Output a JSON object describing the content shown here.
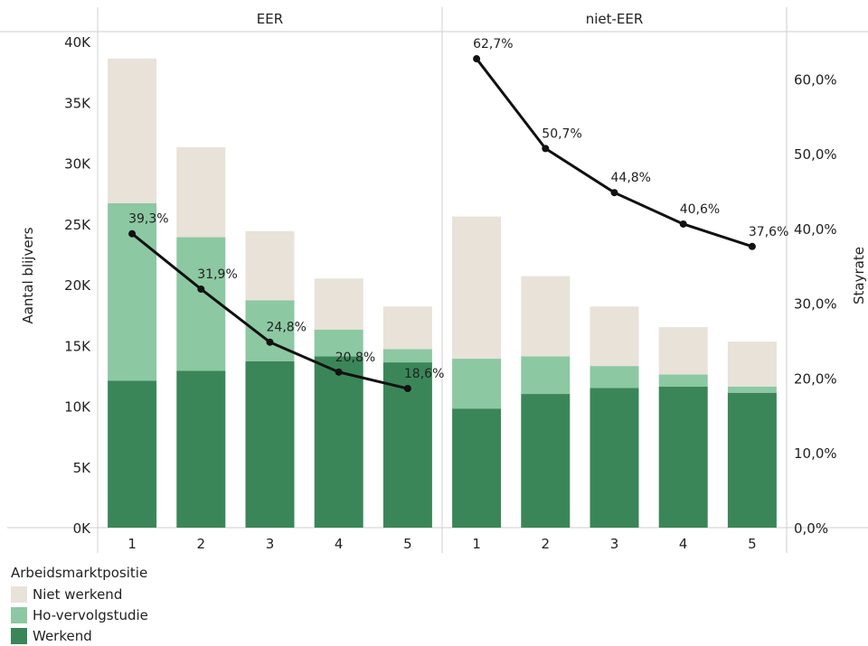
{
  "chart_data": {
    "type": "bar",
    "stacked": true,
    "panels": [
      "EER",
      "niet-EER"
    ],
    "categories": [
      "1",
      "2",
      "3",
      "4",
      "5"
    ],
    "ylabel": "Aantal blijvers",
    "y2label": "Stayrate",
    "ylim": [
      0,
      40000
    ],
    "y2lim": [
      0,
      0.65
    ],
    "yticks": [
      "0K",
      "5K",
      "10K",
      "15K",
      "20K",
      "25K",
      "30K",
      "35K",
      "40K"
    ],
    "y2ticks": [
      "0,0%",
      "10,0%",
      "20,0%",
      "30,0%",
      "40,0%",
      "50,0%",
      "60,0%"
    ],
    "legend_title": "Arbeidsmarktpositie",
    "legend_position": "bottom-left",
    "grid": false,
    "series": [
      {
        "name": "Werkend",
        "color": "#3a8659",
        "values": {
          "EER": [
            12100,
            12900,
            13700,
            14100,
            13600
          ],
          "niet-EER": [
            9800,
            11000,
            11500,
            11600,
            11100
          ]
        }
      },
      {
        "name": "Ho-vervolgstudie",
        "color": "#8cc8a2",
        "values": {
          "EER": [
            14600,
            11000,
            5000,
            2200,
            1100
          ],
          "niet-EER": [
            4100,
            3100,
            1800,
            1000,
            500
          ]
        }
      },
      {
        "name": "Niet werkend",
        "color": "#e8e2d9",
        "values": {
          "EER": [
            11900,
            7400,
            5700,
            4200,
            3500
          ],
          "niet-EER": [
            11700,
            6600,
            4900,
            3900,
            3700
          ]
        }
      }
    ],
    "line": {
      "name": "Stayrate",
      "color": "#111111",
      "values": {
        "EER": [
          0.393,
          0.319,
          0.248,
          0.208,
          0.186
        ],
        "niet-EER": [
          0.627,
          0.507,
          0.448,
          0.406,
          0.376
        ]
      },
      "labels": {
        "EER": [
          "39,3%",
          "31,9%",
          "24,8%",
          "20,8%",
          "18,6%"
        ],
        "niet-EER": [
          "62,7%",
          "50,7%",
          "44,8%",
          "40,6%",
          "37,6%"
        ]
      }
    }
  }
}
